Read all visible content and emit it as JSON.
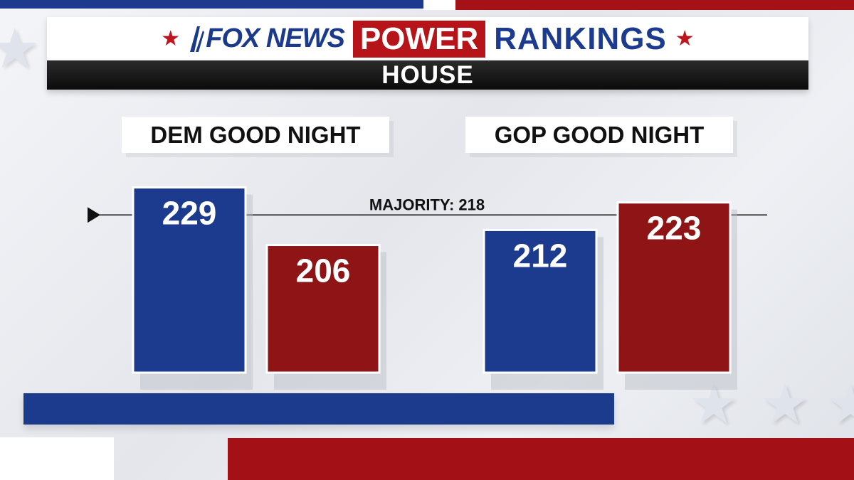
{
  "header": {
    "network": "FOX NEWS",
    "power": "POWER",
    "rankings": "RANKINGS",
    "chamber": "HOUSE",
    "star_glyph": "★"
  },
  "colors": {
    "dem_blue": "#1c3a8e",
    "gop_red": "#8e1416",
    "majority_line": "#111111"
  },
  "chart_data": {
    "type": "bar",
    "groups": [
      "DEM GOOD NIGHT",
      "GOP GOOD NIGHT"
    ],
    "series": [
      {
        "values": [
          229,
          212
        ],
        "color": "#1c3a8e"
      },
      {
        "values": [
          206,
          223
        ],
        "color": "#8e1416"
      }
    ],
    "reference_line": {
      "label": "MAJORITY: 218",
      "value": 218
    },
    "ylim": [
      155,
      234
    ],
    "grid": false,
    "legend": "none",
    "value_labels": true
  }
}
